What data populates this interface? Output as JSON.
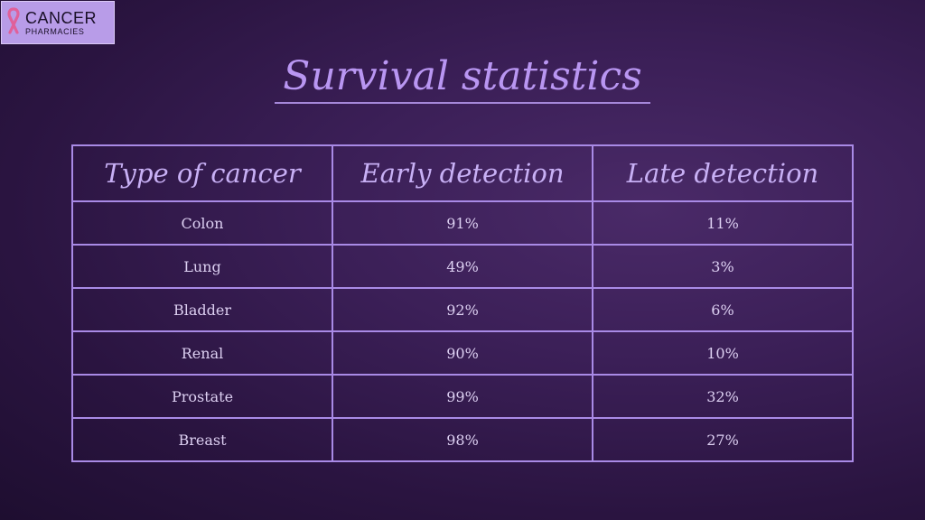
{
  "logo": {
    "line1": "CANCER",
    "line2": "PHARMACIES",
    "icon": "pink-ribbon-icon"
  },
  "title": "Survival statistics",
  "table": {
    "headers": [
      "Type of cancer",
      "Early detection",
      "Late detection"
    ],
    "rows": [
      [
        "Colon",
        "91%",
        "11%"
      ],
      [
        "Lung",
        "49%",
        "3%"
      ],
      [
        "Bladder",
        "92%",
        "6%"
      ],
      [
        "Renal",
        "90%",
        "10%"
      ],
      [
        "Prostate",
        "99%",
        "32%"
      ],
      [
        "Breast",
        "98%",
        "27%"
      ]
    ]
  },
  "colors": {
    "background": "#3b1f57",
    "accent": "#b996f2",
    "border": "#a98ae6",
    "logo_bg": "#b89ce8",
    "ribbon": "#e0609a"
  }
}
